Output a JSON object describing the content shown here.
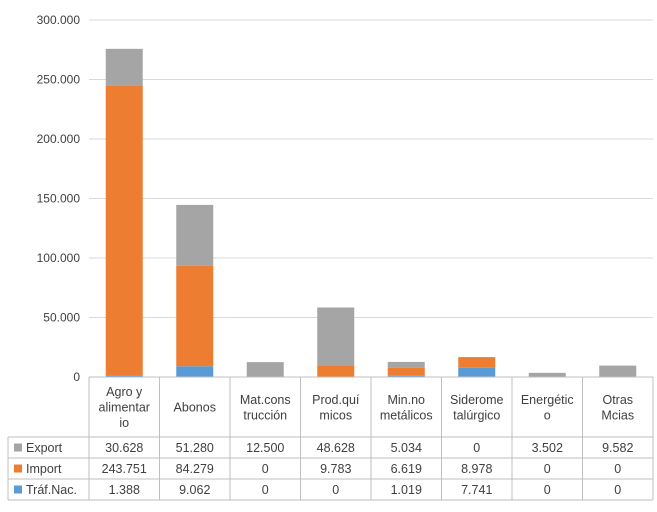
{
  "chart_data": {
    "type": "bar",
    "stacked": true,
    "categories": [
      [
        "Agro y",
        "alimentar",
        "io"
      ],
      [
        "Abonos"
      ],
      [
        "Mat.cons",
        "trucción"
      ],
      [
        "Prod.quí",
        "micos"
      ],
      [
        "Min.no",
        "metálicos"
      ],
      [
        "Siderome",
        "talúrgico"
      ],
      [
        "Energétic",
        "o"
      ],
      [
        "Otras",
        "Mcias"
      ]
    ],
    "series": [
      {
        "name": "Export",
        "color": "#a5a5a5",
        "values": [
          30628,
          51280,
          12500,
          48628,
          5034,
          0,
          3502,
          9582
        ],
        "labels": [
          "30.628",
          "51.280",
          "12.500",
          "48.628",
          "5.034",
          "0",
          "3.502",
          "9.582"
        ]
      },
      {
        "name": "Import",
        "color": "#ed7d31",
        "values": [
          243751,
          84279,
          0,
          9783,
          6619,
          8978,
          0,
          0
        ],
        "labels": [
          "243.751",
          "84.279",
          "0",
          "9.783",
          "6.619",
          "8.978",
          "0",
          "0"
        ]
      },
      {
        "name": "Tráf.Nac.",
        "color": "#5b9bd5",
        "values": [
          1388,
          9062,
          0,
          0,
          1019,
          7741,
          0,
          0
        ],
        "labels": [
          "1.388",
          "9.062",
          "0",
          "0",
          "1.019",
          "7.741",
          "0",
          "0"
        ]
      }
    ],
    "stack_order_bottom_to_top": [
      "Tráf.Nac.",
      "Import",
      "Export"
    ],
    "ylim": [
      0,
      300000
    ],
    "yticks": [
      0,
      50000,
      100000,
      150000,
      200000,
      250000,
      300000
    ],
    "ytick_labels": [
      "0",
      "50.000",
      "100.000",
      "150.000",
      "200.000",
      "250.000",
      "300.000"
    ],
    "grid": true,
    "legend": "data-table"
  }
}
